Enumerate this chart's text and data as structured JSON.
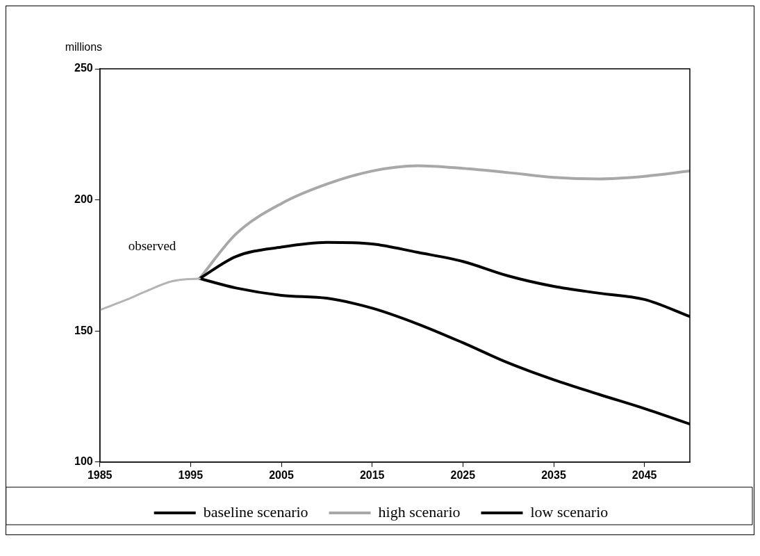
{
  "chart_data": {
    "type": "line",
    "ylabel": "millions",
    "xlim": [
      1985,
      2050
    ],
    "xticks": [
      1985,
      1995,
      2005,
      2015,
      2025,
      2035,
      2045
    ],
    "ylim": [
      100,
      250
    ],
    "yticks": [
      100,
      150,
      200,
      250
    ],
    "grid": false,
    "legend": "bottom",
    "marker": "none",
    "line_style": "solid",
    "series": [
      {
        "color": "#b4b4b4",
        "x": [
          1985,
          1988,
          1990,
          1993,
          1996
        ],
        "values": [
          158,
          162,
          165,
          169,
          170
        ]
      },
      {
        "name": "baseline scenario",
        "color": "#000000",
        "x": [
          1996,
          2000,
          2005,
          2010,
          2015,
          2020,
          2025,
          2030,
          2035,
          2040,
          2045,
          2050
        ],
        "values": [
          170,
          178.4,
          182,
          183.8,
          183.2,
          180,
          176.5,
          171,
          167,
          164.4,
          162,
          155.5
        ]
      },
      {
        "name": "high scenario",
        "color": "#a8a8a8",
        "x": [
          1996,
          2000,
          2005,
          2010,
          2015,
          2020,
          2025,
          2030,
          2035,
          2040,
          2045,
          2050
        ],
        "values": [
          170,
          187,
          198.6,
          206,
          211,
          213,
          212,
          210.4,
          208.6,
          208,
          209,
          211
        ]
      },
      {
        "name": "low scenario",
        "color": "#000000",
        "x": [
          1996,
          2000,
          2005,
          2010,
          2015,
          2020,
          2025,
          2030,
          2035,
          2040,
          2045,
          2050
        ],
        "values": [
          170,
          166.4,
          163.6,
          162.5,
          158.7,
          152.7,
          145.5,
          137.8,
          131.4,
          125.8,
          120.4,
          114.5
        ]
      }
    ],
    "annotations": [
      "observed"
    ]
  }
}
